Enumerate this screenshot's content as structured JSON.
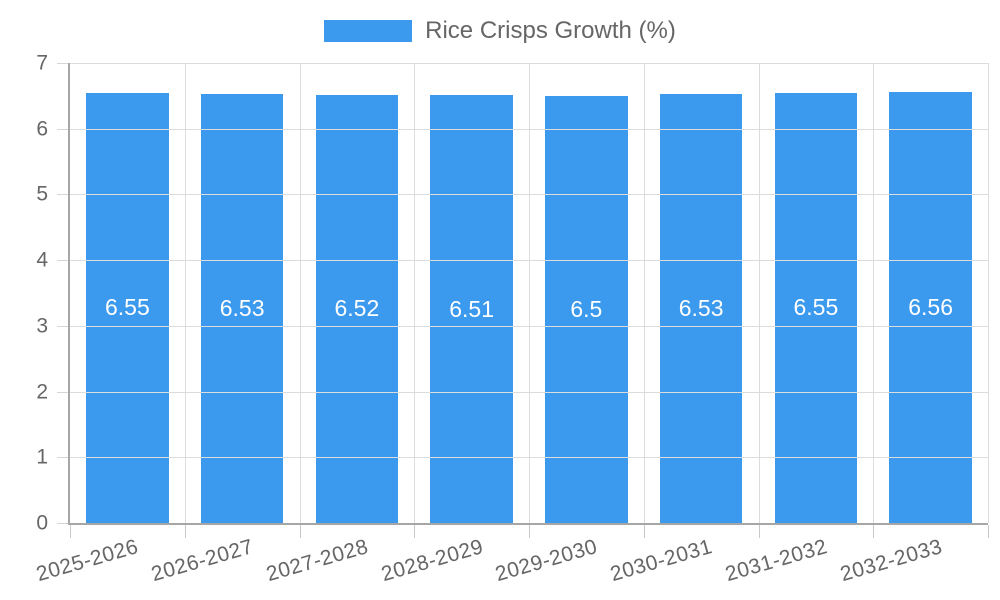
{
  "chart_data": {
    "type": "bar",
    "title": "Rice Crisps Growth (%)",
    "legend": {
      "label": "Rice Crisps Growth (%)",
      "position": "top"
    },
    "categories": [
      "2025-2026",
      "2026-2027",
      "2027-2028",
      "2028-2029",
      "2029-2030",
      "2030-2031",
      "2031-2032",
      "2032-2033"
    ],
    "values": [
      6.55,
      6.53,
      6.52,
      6.51,
      6.5,
      6.53,
      6.55,
      6.56
    ],
    "value_labels": [
      "6.55",
      "6.53",
      "6.52",
      "6.51",
      "6.5",
      "6.53",
      "6.55",
      "6.56"
    ],
    "xlabel": "",
    "ylabel": "",
    "ylim": [
      0,
      7
    ],
    "yticks": [
      0,
      1,
      2,
      3,
      4,
      5,
      6,
      7
    ],
    "grid": true,
    "x_label_rotation_deg": -16,
    "colors": {
      "bar": "#3B99EE",
      "grid": "#DCDCDC",
      "axis": "#A6A6A6",
      "tick_label": "#666666",
      "value_label": "#FFFFFF",
      "legend_text": "#666666",
      "background": "#FFFFFF"
    }
  }
}
